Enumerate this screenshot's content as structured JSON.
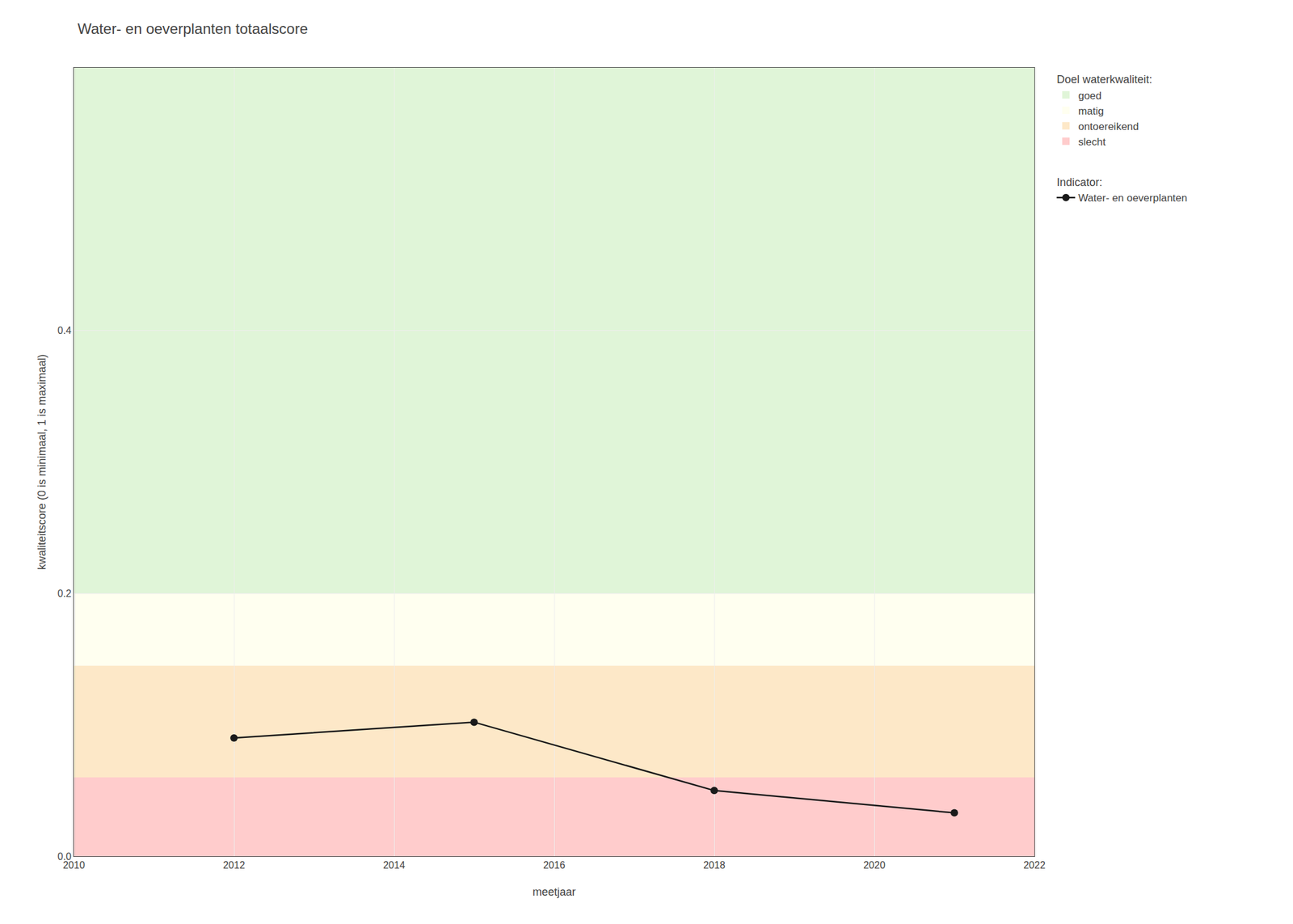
{
  "chart_data": {
    "type": "line",
    "title": "Water- en oeverplanten totaalscore",
    "x_label": "meetjaar",
    "y_label": "kwaliteitscore (0 is minimaal, 1 is maximaal)",
    "x": [
      2012,
      2015,
      2018,
      2021
    ],
    "series": [
      {
        "name": "Water- en oeverplanten",
        "color": "#1a1a1a",
        "marker": "circle",
        "line_style": "solid",
        "values": [
          0.09,
          0.102,
          0.05,
          0.033
        ]
      }
    ],
    "series_title": "Indicator:",
    "zones": {
      "title": "Doel waterkwaliteit:",
      "bands": [
        {
          "name": "goed",
          "from": 0.2,
          "to": 0.6,
          "color": "#e0f5d8"
        },
        {
          "name": "matig",
          "from": 0.145,
          "to": 0.2,
          "color": "#fffff0"
        },
        {
          "name": "ontoereikend",
          "from": 0.06,
          "to": 0.145,
          "color": "#fde8c8"
        },
        {
          "name": "slecht",
          "from": 0,
          "to": 0.06,
          "color": "#ffcccc"
        }
      ]
    },
    "xlim": [
      2010,
      2022
    ],
    "xticks": [
      2010,
      2012,
      2014,
      2016,
      2018,
      2020,
      2022
    ],
    "ylim": [
      0,
      0.6
    ],
    "yticks": [
      {
        "value": 0.0,
        "label": "0.0"
      },
      0.2,
      0.4
    ],
    "grid": true,
    "legend": "right"
  }
}
